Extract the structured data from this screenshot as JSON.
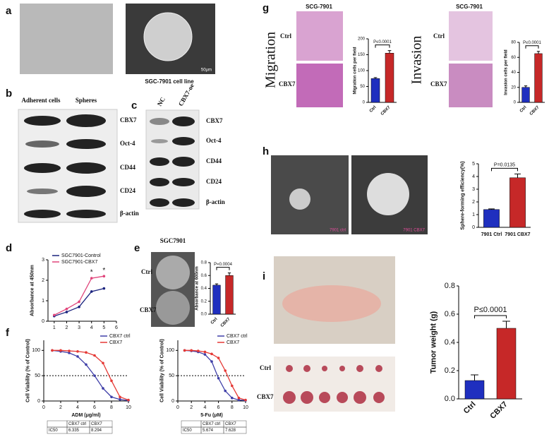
{
  "panels": {
    "a": {
      "label": "a",
      "caption": "SGC-7901 cell line",
      "scale": "50μm"
    },
    "b": {
      "label": "b",
      "columns": [
        "Adherent cells",
        "Spheres"
      ],
      "rows": [
        "CBX7",
        "Oct-4",
        "CD44",
        "CD24",
        "β-actin"
      ]
    },
    "c": {
      "label": "c",
      "columns": [
        "NC",
        "CBX7-oe"
      ],
      "rows": [
        "CBX7",
        "Oct-4",
        "CD44",
        "CD24",
        "β-actin"
      ]
    },
    "d": {
      "label": "d"
    },
    "e": {
      "label": "e",
      "title": "SGC7901",
      "rows": [
        "Ctrl",
        "CBX7"
      ]
    },
    "f": {
      "label": "f"
    },
    "g": {
      "label": "g",
      "sections": [
        {
          "title": "Migration",
          "cell_line": "SCG-7901",
          "rows": [
            "Ctrl",
            "CBX7"
          ]
        },
        {
          "title": "Invasion",
          "cell_line": "SCG-7901",
          "rows": [
            "Ctrl",
            "CBX7"
          ]
        }
      ]
    },
    "h": {
      "label": "h",
      "images": [
        "7901 ctrl",
        "7901 CBX7"
      ]
    },
    "i": {
      "label": "i",
      "rows": [
        "Ctrl",
        "CBX7"
      ]
    }
  },
  "chart_data": [
    {
      "type": "line",
      "y_label": "Absorbance at 450nm",
      "x": [
        1,
        2,
        3,
        4,
        5
      ],
      "series": [
        {
          "name": "SGC7901-Control",
          "color": "#1a237e",
          "values": [
            0.25,
            0.45,
            0.7,
            1.45,
            1.6
          ]
        },
        {
          "name": "SGC7901-CBX7",
          "color": "#e0457b",
          "values": [
            0.3,
            0.6,
            0.95,
            2.1,
            2.2
          ]
        }
      ],
      "xlim": [
        0.5,
        6
      ],
      "xticks": [
        1,
        2,
        3,
        4,
        5,
        6
      ],
      "ylim": [
        0,
        3
      ],
      "yticks": [
        0,
        1,
        2,
        3
      ],
      "legend": "top-left",
      "annotations": [
        {
          "x": 4,
          "text": "*"
        },
        {
          "x": 5,
          "text": "*"
        }
      ]
    },
    {
      "type": "bar",
      "y_label": "Absorbance at 600nm",
      "categories": [
        "Ctrl",
        "CBX7"
      ],
      "values": [
        0.45,
        0.6
      ],
      "errors": [
        0.02,
        0.04
      ],
      "colors": [
        "#1f2fbf",
        "#c62828"
      ],
      "ylim": [
        0,
        0.8
      ],
      "yticks": [
        {
          "value": 0,
          "label": "0.0"
        },
        {
          "value": 0.2,
          "label": "0.2"
        },
        {
          "value": 0.4,
          "label": "0.4"
        },
        {
          "value": 0.6,
          "label": "0.6"
        },
        {
          "value": 0.8,
          "label": "0.8"
        }
      ],
      "annotation": "P=0.0004"
    },
    {
      "type": "line",
      "x_label": "ADM (μg/ml)",
      "y_label": "Cell Viability (% of Control)",
      "x": [
        1,
        2,
        3,
        4,
        5,
        6,
        7,
        8,
        9,
        10
      ],
      "series": [
        {
          "name": "CBX7 ctrl",
          "color": "#3f3fa8",
          "values": [
            100,
            98,
            95,
            88,
            72,
            50,
            25,
            8,
            3,
            1
          ]
        },
        {
          "name": "CBX7",
          "color": "#e53935",
          "values": [
            100,
            100,
            99,
            98,
            96,
            90,
            75,
            40,
            8,
            2
          ]
        }
      ],
      "xlim": [
        0,
        10
      ],
      "xticks": [
        0,
        2,
        4,
        6,
        8,
        10
      ],
      "ylim": [
        0,
        120
      ],
      "yticks": [
        0,
        50,
        100
      ],
      "hline": 50,
      "legend": "top-right",
      "table": {
        "columns": [
          "CBX7 ctrl",
          "CBX7"
        ],
        "row_label": "IC50",
        "values": [
          6.335,
          8.294
        ]
      }
    },
    {
      "type": "line",
      "x_label": "5-Fu (μM)",
      "y_label": "Cell Viability (% of Control)",
      "x": [
        1,
        2,
        3,
        4,
        5,
        6,
        7,
        8,
        9,
        10
      ],
      "series": [
        {
          "name": "CBX7 ctrl",
          "color": "#3f3fa8",
          "values": [
            100,
            99,
            97,
            92,
            78,
            45,
            20,
            6,
            2,
            1
          ]
        },
        {
          "name": "CBX7",
          "color": "#e53935",
          "values": [
            100,
            100,
            99,
            97,
            93,
            85,
            60,
            30,
            6,
            2
          ]
        }
      ],
      "xlim": [
        0,
        10
      ],
      "xticks": [
        0,
        2,
        4,
        6,
        8,
        10
      ],
      "ylim": [
        0,
        120
      ],
      "yticks": [
        0,
        50,
        100
      ],
      "hline": 50,
      "legend": "top-right",
      "table": {
        "columns": [
          "CBX7 ctrl",
          "CBX7"
        ],
        "row_label": "IC50",
        "values": [
          5.674,
          7.628
        ]
      }
    },
    {
      "type": "bar",
      "y_label": "Migration cells per field",
      "categories": [
        "Ctrl",
        "CBX7"
      ],
      "values": [
        75,
        155
      ],
      "errors": [
        3,
        8
      ],
      "colors": [
        "#1f2fbf",
        "#c62828"
      ],
      "ylim": [
        0,
        200
      ],
      "yticks": [
        0,
        50,
        100,
        150,
        200
      ],
      "annotation": "P≤0.0001"
    },
    {
      "type": "bar",
      "y_label": "Invasion cells per field",
      "categories": [
        "Ctrl",
        "CBX7"
      ],
      "values": [
        20,
        65
      ],
      "errors": [
        2,
        3
      ],
      "colors": [
        "#1f2fbf",
        "#c62828"
      ],
      "ylim": [
        0,
        80
      ],
      "yticks": [
        0,
        20,
        40,
        60,
        80
      ],
      "annotation": "P≤0.0001"
    },
    {
      "type": "bar",
      "y_label": "Sphere-forming efficiency(%)",
      "categories": [
        "7901 Ctrl",
        "7901 CBX7"
      ],
      "values": [
        1.4,
        3.9
      ],
      "errors": [
        0.05,
        0.3
      ],
      "colors": [
        "#1f2fbf",
        "#c62828"
      ],
      "ylim": [
        0,
        5
      ],
      "yticks": [
        0,
        1,
        2,
        3,
        4,
        5
      ],
      "annotation": "P=0.0135"
    },
    {
      "type": "bar",
      "y_label": "Tumor weight (g)",
      "categories": [
        "Ctrl",
        "CBX7"
      ],
      "values": [
        0.13,
        0.5
      ],
      "errors": [
        0.04,
        0.05
      ],
      "colors": [
        "#1f2fbf",
        "#c62828"
      ],
      "ylim": [
        0,
        0.8
      ],
      "yticks": [
        {
          "value": 0,
          "label": "0.0"
        },
        {
          "value": 0.2,
          "label": "0.2"
        },
        {
          "value": 0.4,
          "label": "0.4"
        },
        {
          "value": 0.6,
          "label": "0.6"
        },
        {
          "value": 0.8,
          "label": "0.8"
        }
      ],
      "annotation": "P≤0.0001"
    }
  ]
}
